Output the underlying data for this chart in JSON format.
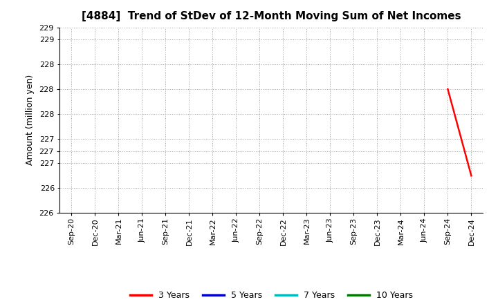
{
  "title": "[4884]  Trend of StDev of 12-Month Moving Sum of Net Incomes",
  "ylabel": "Amount (million yen)",
  "ylim": [
    226,
    229
  ],
  "background_color": "#ffffff",
  "grid_color": "#888888",
  "series": {
    "3 Years": {
      "color": "#ff0000",
      "x": [
        "Sep-24",
        "Dec-24"
      ],
      "y": [
        228.0,
        226.6
      ]
    },
    "5 Years": {
      "color": "#0000cc",
      "x": [],
      "y": []
    },
    "7 Years": {
      "color": "#00bbbb",
      "x": [],
      "y": []
    },
    "10 Years": {
      "color": "#007700",
      "x": [],
      "y": []
    }
  },
  "x_labels": [
    "Sep-20",
    "Dec-20",
    "Mar-21",
    "Jun-21",
    "Sep-21",
    "Dec-21",
    "Mar-22",
    "Jun-22",
    "Sep-22",
    "Dec-22",
    "Mar-23",
    "Jun-23",
    "Sep-23",
    "Dec-23",
    "Mar-24",
    "Jun-24",
    "Sep-24",
    "Dec-24"
  ],
  "legend_entries": [
    "3 Years",
    "5 Years",
    "7 Years",
    "10 Years"
  ],
  "legend_colors": [
    "#ff0000",
    "#0000cc",
    "#00bbbb",
    "#007700"
  ],
  "title_fontsize": 11,
  "axis_label_fontsize": 9,
  "tick_fontsize": 8
}
